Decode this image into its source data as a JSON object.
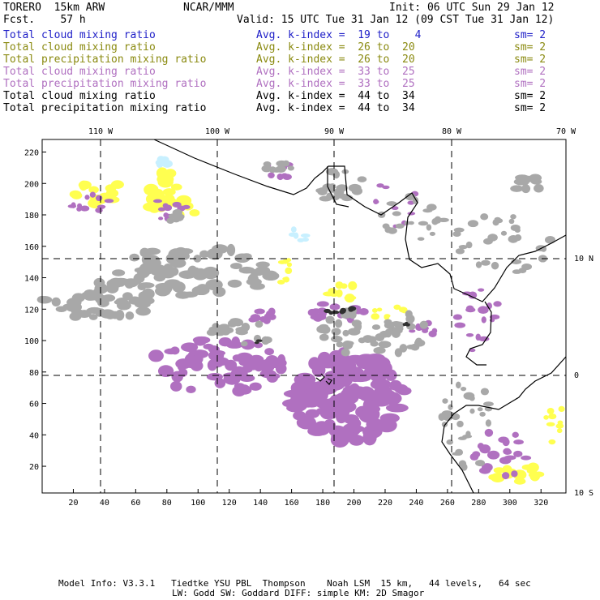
{
  "header": {
    "model": "TORERO  15km ARW",
    "org": "NCAR/MMM",
    "init": "Init: 06 UTC Sun 29 Jan 12",
    "fcst": "Fcst.    57 h",
    "valid": "Valid: 15 UTC Tue 31 Jan 12 (09 CST Tue 31 Jan 12)"
  },
  "legend": [
    {
      "field": "Total cloud mixing ratio",
      "kindex": "Avg. k-index =  19 to    4",
      "sm": "sm= 2",
      "color": "#2020c8"
    },
    {
      "field": "Total cloud mixing ratio",
      "kindex": "Avg. k-index =  26 to  20",
      "sm": "sm= 2",
      "color": "#8a8a10"
    },
    {
      "field": "Total precipitation mixing ratio",
      "kindex": "Avg. k-index =  26 to  20",
      "sm": "sm= 2",
      "color": "#8a8a10"
    },
    {
      "field": "Total cloud mixing ratio",
      "kindex": "Avg. k-index =  33 to  25",
      "sm": "sm= 2",
      "color": "#b070c0"
    },
    {
      "field": "Total precipitation mixing ratio",
      "kindex": "Avg. k-index =  33 to  25",
      "sm": "sm= 2",
      "color": "#b070c0"
    },
    {
      "field": "Total cloud mixing ratio",
      "kindex": "Avg. k-index =  44 to  34",
      "sm": "sm= 2",
      "color": "#000000"
    },
    {
      "field": "Total precipitation mixing ratio",
      "kindex": "Avg. k-index =  44 to  34",
      "sm": "sm= 2",
      "color": "#000000"
    }
  ],
  "map": {
    "lon_labels": [
      "110 W",
      "100 W",
      "90 W",
      "80 W",
      "70 W"
    ],
    "lat_labels": [
      "10 N",
      "0",
      "10 S"
    ],
    "y_ticks": [
      "20",
      "40",
      "60",
      "80",
      "100",
      "120",
      "140",
      "160",
      "180",
      "200",
      "220"
    ],
    "x_ticks": [
      "20",
      "40",
      "60",
      "80",
      "100",
      "120",
      "140",
      "160",
      "180",
      "200",
      "220",
      "240",
      "260",
      "280",
      "300",
      "320"
    ],
    "colors": {
      "gray": "#a8a8a8",
      "purple": "#b070c0",
      "yellow": "#ffff50",
      "cyan": "#c8f0ff",
      "dark": "#303030"
    }
  },
  "footer": {
    "line1": "Model Info: V3.3.1   Tiedtke YSU PBL  Thompson    Noah LSM  15 km,   44 levels,   64 sec",
    "line2": "LW: Godd SW: Goddard DIFF: simple KM: 2D Smagor"
  }
}
